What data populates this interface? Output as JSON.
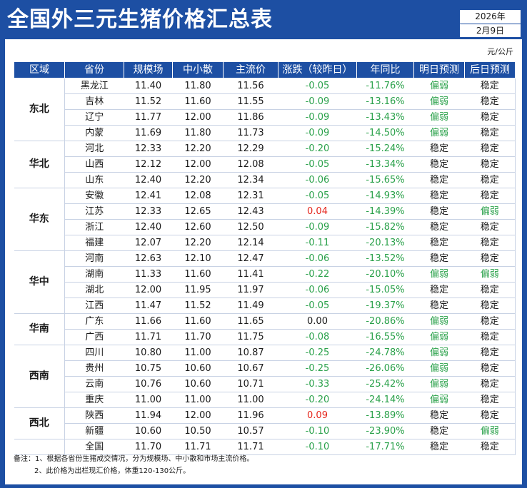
{
  "title": "全国外三元生猪价格汇总表",
  "date": {
    "year": "2026年",
    "day": "2月9日"
  },
  "unit": "元/公斤",
  "headers": [
    "区域",
    "省份",
    "规模场",
    "中小散",
    "主流价",
    "涨跌（较昨日）",
    "年同比",
    "明日预测",
    "后日预测"
  ],
  "colors": {
    "primary": "#1d4fa3",
    "negative": "#2aa14a",
    "positive": "#e5261c"
  },
  "regions": [
    {
      "name": "东北",
      "rows": [
        {
          "province": "黑龙江",
          "large": "11.40",
          "small": "11.80",
          "main": "11.56",
          "change": "-0.05",
          "yoy": "-11.76%",
          "d1": "偏弱",
          "d2": "稳定"
        },
        {
          "province": "吉林",
          "large": "11.52",
          "small": "11.60",
          "main": "11.55",
          "change": "-0.09",
          "yoy": "-13.16%",
          "d1": "偏弱",
          "d2": "稳定"
        },
        {
          "province": "辽宁",
          "large": "11.77",
          "small": "12.00",
          "main": "11.86",
          "change": "-0.09",
          "yoy": "-13.43%",
          "d1": "偏弱",
          "d2": "稳定"
        },
        {
          "province": "内蒙",
          "large": "11.69",
          "small": "11.80",
          "main": "11.73",
          "change": "-0.09",
          "yoy": "-14.50%",
          "d1": "偏弱",
          "d2": "稳定"
        }
      ]
    },
    {
      "name": "华北",
      "rows": [
        {
          "province": "河北",
          "large": "12.33",
          "small": "12.20",
          "main": "12.29",
          "change": "-0.20",
          "yoy": "-15.24%",
          "d1": "稳定",
          "d2": "稳定"
        },
        {
          "province": "山西",
          "large": "12.12",
          "small": "12.00",
          "main": "12.08",
          "change": "-0.05",
          "yoy": "-13.34%",
          "d1": "稳定",
          "d2": "稳定"
        },
        {
          "province": "山东",
          "large": "12.40",
          "small": "12.20",
          "main": "12.34",
          "change": "-0.06",
          "yoy": "-15.65%",
          "d1": "稳定",
          "d2": "稳定"
        }
      ]
    },
    {
      "name": "华东",
      "rows": [
        {
          "province": "安徽",
          "large": "12.41",
          "small": "12.08",
          "main": "12.31",
          "change": "-0.05",
          "yoy": "-14.93%",
          "d1": "稳定",
          "d2": "稳定"
        },
        {
          "province": "江苏",
          "large": "12.33",
          "small": "12.65",
          "main": "12.43",
          "change": "0.04",
          "yoy": "-14.39%",
          "d1": "稳定",
          "d2": "偏弱"
        },
        {
          "province": "浙江",
          "large": "12.40",
          "small": "12.60",
          "main": "12.50",
          "change": "-0.09",
          "yoy": "-15.82%",
          "d1": "稳定",
          "d2": "稳定"
        },
        {
          "province": "福建",
          "large": "12.07",
          "small": "12.20",
          "main": "12.14",
          "change": "-0.11",
          "yoy": "-20.13%",
          "d1": "稳定",
          "d2": "稳定"
        }
      ]
    },
    {
      "name": "华中",
      "rows": [
        {
          "province": "河南",
          "large": "12.63",
          "small": "12.10",
          "main": "12.47",
          "change": "-0.06",
          "yoy": "-13.52%",
          "d1": "稳定",
          "d2": "稳定"
        },
        {
          "province": "湖南",
          "large": "11.33",
          "small": "11.60",
          "main": "11.41",
          "change": "-0.22",
          "yoy": "-20.10%",
          "d1": "偏弱",
          "d2": "偏弱"
        },
        {
          "province": "湖北",
          "large": "12.00",
          "small": "11.95",
          "main": "11.97",
          "change": "-0.06",
          "yoy": "-15.05%",
          "d1": "稳定",
          "d2": "稳定"
        },
        {
          "province": "江西",
          "large": "11.47",
          "small": "11.52",
          "main": "11.49",
          "change": "-0.05",
          "yoy": "-19.37%",
          "d1": "稳定",
          "d2": "稳定"
        }
      ]
    },
    {
      "name": "华南",
      "rows": [
        {
          "province": "广东",
          "large": "11.66",
          "small": "11.60",
          "main": "11.65",
          "change": "0.00",
          "yoy": "-20.86%",
          "d1": "偏弱",
          "d2": "稳定"
        },
        {
          "province": "广西",
          "large": "11.71",
          "small": "11.70",
          "main": "11.75",
          "change": "-0.08",
          "yoy": "-16.55%",
          "d1": "偏弱",
          "d2": "稳定"
        }
      ]
    },
    {
      "name": "西南",
      "rows": [
        {
          "province": "四川",
          "large": "10.80",
          "small": "11.00",
          "main": "10.87",
          "change": "-0.25",
          "yoy": "-24.78%",
          "d1": "偏弱",
          "d2": "稳定"
        },
        {
          "province": "贵州",
          "large": "10.75",
          "small": "10.60",
          "main": "10.67",
          "change": "-0.25",
          "yoy": "-26.06%",
          "d1": "偏弱",
          "d2": "稳定"
        },
        {
          "province": "云南",
          "large": "10.76",
          "small": "10.60",
          "main": "10.71",
          "change": "-0.33",
          "yoy": "-25.42%",
          "d1": "偏弱",
          "d2": "稳定"
        },
        {
          "province": "重庆",
          "large": "11.00",
          "small": "11.00",
          "main": "11.00",
          "change": "-0.20",
          "yoy": "-24.14%",
          "d1": "偏弱",
          "d2": "稳定"
        }
      ]
    },
    {
      "name": "西北",
      "rows": [
        {
          "province": "陕西",
          "large": "11.94",
          "small": "12.00",
          "main": "11.96",
          "change": "0.09",
          "yoy": "-13.89%",
          "d1": "稳定",
          "d2": "稳定"
        },
        {
          "province": "新疆",
          "large": "10.60",
          "small": "10.50",
          "main": "10.57",
          "change": "-0.10",
          "yoy": "-23.90%",
          "d1": "稳定",
          "d2": "偏弱"
        }
      ]
    }
  ],
  "national": {
    "label": "全国",
    "large": "11.70",
    "small": "11.71",
    "main": "11.71",
    "change": "-0.10",
    "yoy": "-17.71%",
    "d1": "稳定",
    "d2": "稳定"
  },
  "notes": [
    "备注：1、根据各省份生猪成交情况，分为规模场、中小散和市场主流价格。",
    "2、此价格为出栏现汇价格，体重120-130公斤。"
  ]
}
